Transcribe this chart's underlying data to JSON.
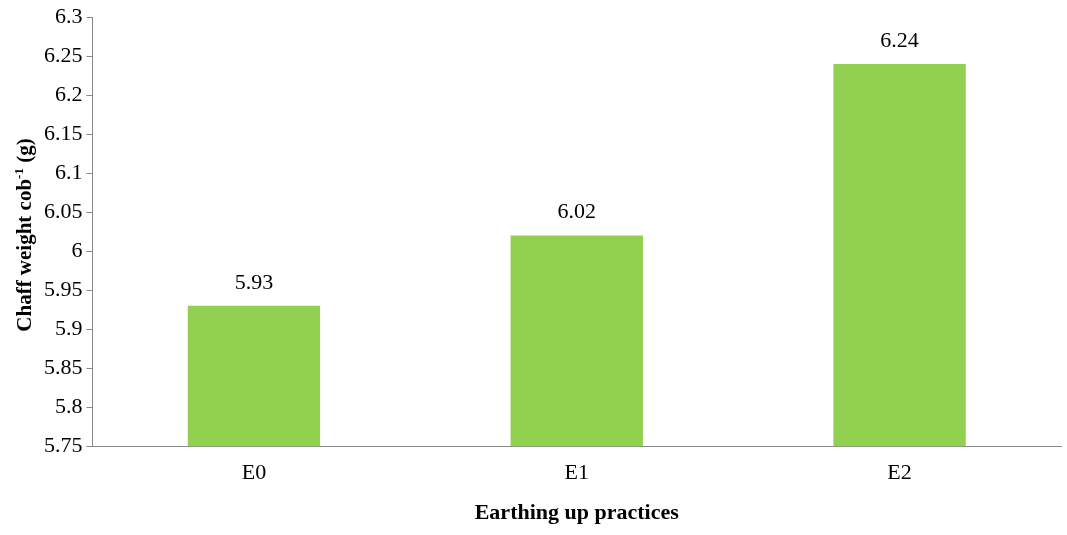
{
  "chart_data": {
    "type": "bar",
    "xlabel": "Earthing up practices",
    "ylabel": "Chaff weight cob$^{-1}$ (g)",
    "categories": [
      "E0",
      "E1",
      "E2"
    ],
    "values": [
      5.93,
      6.02,
      6.24
    ],
    "color": "#92d050",
    "ylim": [
      5.75,
      6.3
    ],
    "yticks": [
      5.75,
      5.8,
      5.85,
      5.9,
      5.95,
      6,
      6.05,
      6.1,
      6.15,
      6.2,
      6.25,
      6.3
    ],
    "grid": false,
    "legend": false,
    "data_labels": true
  }
}
